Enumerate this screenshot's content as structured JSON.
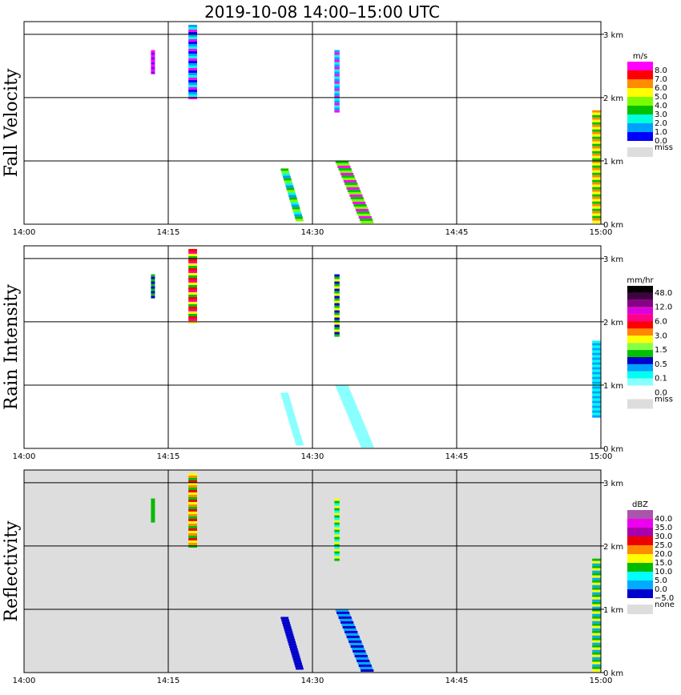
{
  "title": "2019-10-08   14:00–15:00 UTC",
  "chart_data": {
    "type": "heatmap",
    "title": "2019-10-08   14:00–15:00 UTC",
    "x_ticks": [
      "14:00",
      "14:15",
      "14:30",
      "14:45",
      "15:00"
    ],
    "y_ticks": [
      "0 km",
      "1 km",
      "2 km",
      "3 km"
    ],
    "xlim": [
      "14:00",
      "15:00"
    ],
    "ylim_km": [
      0,
      3.2
    ],
    "grid": true,
    "panels": [
      {
        "ylabel": "Fall Velocity",
        "unit": "m/s",
        "background": "#ffffff",
        "colorbar": [
          {
            "label": "8.0",
            "color": "#ff00ff"
          },
          {
            "label": "7.0",
            "color": "#ff0000"
          },
          {
            "label": "6.0",
            "color": "#ff8c00"
          },
          {
            "label": "5.0",
            "color": "#ffff00"
          },
          {
            "label": "4.0",
            "color": "#7cfc00"
          },
          {
            "label": "3.0",
            "color": "#00c000"
          },
          {
            "label": "2.0",
            "color": "#00ffdd"
          },
          {
            "label": "1.0",
            "color": "#00a0ff"
          },
          {
            "label": "0.0",
            "color": "#0000ff"
          },
          {
            "label": "miss",
            "color": "#dddddd"
          }
        ],
        "features": [
          {
            "t0": 14.285,
            "t1": 14.3,
            "z0": 2.0,
            "z1": 3.15,
            "colors": [
              "#00a0ff",
              "#00ffdd",
              "#ff00ff",
              "#0000ff"
            ]
          },
          {
            "t0": 14.22,
            "t1": 14.227,
            "z0": 2.4,
            "z1": 2.75,
            "colors": [
              "#ff00ff",
              "#8800ff"
            ]
          },
          {
            "t0": 14.538,
            "t1": 14.547,
            "z0": 1.8,
            "z1": 2.75,
            "colors": [
              "#00a0ff",
              "#ff00ff",
              "#00ffdd"
            ]
          },
          {
            "t0": 14.445,
            "t1": 14.475,
            "z0": 0.05,
            "z1": 0.88,
            "colors": [
              "#00c000",
              "#7cfc00",
              "#00ffdd",
              "#00a0ff"
            ]
          },
          {
            "t0": 14.54,
            "t1": 14.59,
            "z0": 0.02,
            "z1": 1.0,
            "colors": [
              "#00c000",
              "#7cfc00",
              "#ff00ff"
            ]
          },
          {
            "t0": 14.985,
            "t1": 15.0,
            "z0": 0.05,
            "z1": 1.8,
            "colors": [
              "#ff8c00",
              "#ffff00",
              "#00c000"
            ]
          }
        ]
      },
      {
        "ylabel": "Rain Intensity",
        "unit": "mm/hr",
        "background": "#ffffff",
        "colorbar": [
          {
            "label": "48.0",
            "color": "#000000"
          },
          {
            "label": "",
            "color": "#440044"
          },
          {
            "label": "12.0",
            "color": "#880088"
          },
          {
            "label": "",
            "color": "#dd00dd"
          },
          {
            "label": "6.0",
            "color": "#ff0088"
          },
          {
            "label": "",
            "color": "#ff0000"
          },
          {
            "label": "3.0",
            "color": "#ff8800"
          },
          {
            "label": "",
            "color": "#ffff00"
          },
          {
            "label": "1.5",
            "color": "#88ff44"
          },
          {
            "label": "",
            "color": "#00c000"
          },
          {
            "label": "0.5",
            "color": "#0000cc"
          },
          {
            "label": "",
            "color": "#00a0ff"
          },
          {
            "label": "0.1",
            "color": "#00ffee"
          },
          {
            "label": "",
            "color": "#88ffff"
          },
          {
            "label": "0.0",
            "color": "#ffffff"
          },
          {
            "label": "miss",
            "color": "#dddddd"
          }
        ],
        "features": [
          {
            "t0": 14.285,
            "t1": 14.3,
            "z0": 2.0,
            "z1": 3.15,
            "colors": [
              "#ff0000",
              "#ff0088",
              "#ffff00",
              "#00c000"
            ]
          },
          {
            "t0": 14.22,
            "t1": 14.227,
            "z0": 2.4,
            "z1": 2.75,
            "colors": [
              "#00c000",
              "#0000cc"
            ]
          },
          {
            "t0": 14.538,
            "t1": 14.547,
            "z0": 1.8,
            "z1": 2.75,
            "colors": [
              "#0000cc",
              "#00c000",
              "#ffff00"
            ]
          },
          {
            "t0": 14.445,
            "t1": 14.475,
            "z0": 0.05,
            "z1": 0.88,
            "colors": [
              "#88ffff"
            ]
          },
          {
            "t0": 14.54,
            "t1": 14.59,
            "z0": 0.02,
            "z1": 1.0,
            "colors": [
              "#88ffff"
            ]
          },
          {
            "t0": 14.985,
            "t1": 15.0,
            "z0": 0.5,
            "z1": 1.7,
            "colors": [
              "#00ffee",
              "#00a0ff"
            ]
          }
        ]
      },
      {
        "ylabel": "Reflectivity",
        "unit": "dBZ",
        "background": "#dddddd",
        "colorbar": [
          {
            "label": "40.0",
            "color": "#aa55aa"
          },
          {
            "label": "35.0",
            "color": "#ee00ee"
          },
          {
            "label": "30.0",
            "color": "#aa00aa"
          },
          {
            "label": "25.0",
            "color": "#ee0000"
          },
          {
            "label": "20.0",
            "color": "#ff8c00"
          },
          {
            "label": "15.0",
            "color": "#ffff00"
          },
          {
            "label": "10.0",
            "color": "#00bb00"
          },
          {
            "label": "5.0",
            "color": "#00ffff"
          },
          {
            "label": "0.0",
            "color": "#00aaff"
          },
          {
            "label": "−5.0",
            "color": "#0000cc"
          },
          {
            "label": "none",
            "color": "#dddddd"
          }
        ],
        "features": [
          {
            "t0": 14.285,
            "t1": 14.3,
            "z0": 2.0,
            "z1": 3.15,
            "colors": [
              "#ffff00",
              "#ff8c00",
              "#00bb00",
              "#ee0000"
            ]
          },
          {
            "t0": 14.22,
            "t1": 14.227,
            "z0": 2.4,
            "z1": 2.75,
            "colors": [
              "#00bb00"
            ]
          },
          {
            "t0": 14.538,
            "t1": 14.547,
            "z0": 1.8,
            "z1": 2.75,
            "colors": [
              "#ffff00",
              "#00bb00",
              "#00ffff"
            ]
          },
          {
            "t0": 14.445,
            "t1": 14.475,
            "z0": 0.05,
            "z1": 0.88,
            "colors": [
              "#0000cc"
            ]
          },
          {
            "t0": 14.54,
            "t1": 14.59,
            "z0": 0.02,
            "z1": 1.0,
            "colors": [
              "#00aaff",
              "#0000cc"
            ]
          },
          {
            "t0": 14.985,
            "t1": 15.0,
            "z0": 0.05,
            "z1": 1.8,
            "colors": [
              "#00bb00",
              "#ffff00",
              "#00aaff"
            ]
          }
        ]
      }
    ]
  }
}
